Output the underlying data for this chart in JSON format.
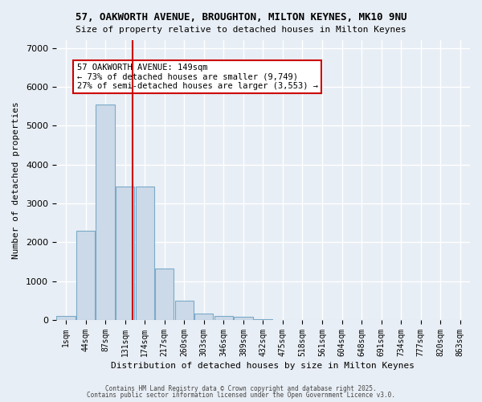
{
  "title1": "57, OAKWORTH AVENUE, BROUGHTON, MILTON KEYNES, MK10 9NU",
  "title2": "Size of property relative to detached houses in Milton Keynes",
  "xlabel": "Distribution of detached houses by size in Milton Keynes",
  "ylabel": "Number of detached properties",
  "bar_labels": [
    "1sqm",
    "44sqm",
    "87sqm",
    "131sqm",
    "174sqm",
    "217sqm",
    "260sqm",
    "303sqm",
    "346sqm",
    "389sqm",
    "432sqm",
    "475sqm",
    "518sqm",
    "561sqm",
    "604sqm",
    "648sqm",
    "691sqm",
    "734sqm",
    "777sqm",
    "820sqm",
    "863sqm"
  ],
  "bar_values": [
    100,
    2300,
    5550,
    3430,
    3430,
    1330,
    500,
    175,
    100,
    75,
    30,
    0,
    0,
    0,
    0,
    0,
    0,
    0,
    0,
    0,
    0
  ],
  "bar_color": "#ccd9e8",
  "bar_edgecolor": "#7aaac8",
  "vline_x": 3.39,
  "vline_color": "#cc0000",
  "annotation_text": "57 OAKWORTH AVENUE: 149sqm\n← 73% of detached houses are smaller (9,749)\n27% of semi-detached houses are larger (3,553) →",
  "annotation_box_color": "#ffffff",
  "annotation_border_color": "#cc0000",
  "ylim": [
    0,
    7200
  ],
  "yticks": [
    0,
    1000,
    2000,
    3000,
    4000,
    5000,
    6000,
    7000
  ],
  "bg_color": "#e8eef5",
  "grid_color": "#ffffff",
  "footnote1": "Contains HM Land Registry data © Crown copyright and database right 2025.",
  "footnote2": "Contains public sector information licensed under the Open Government Licence v3.0."
}
